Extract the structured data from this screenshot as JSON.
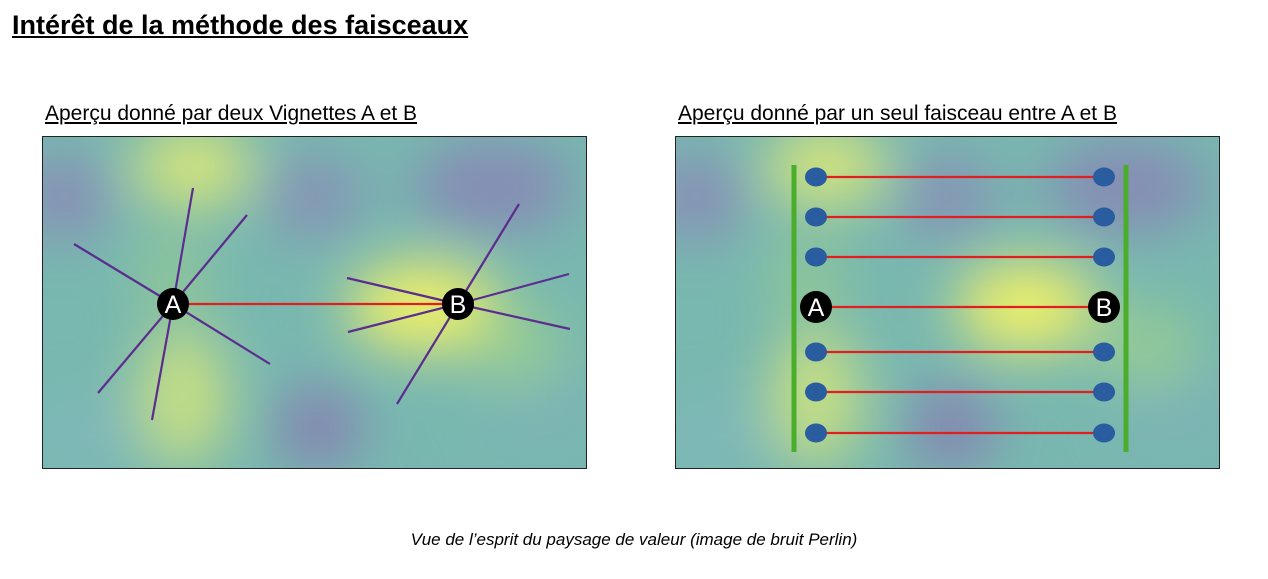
{
  "page": {
    "title": "Intérêt de la méthode des faisceaux",
    "caption": "Vue de l’esprit du paysage de valeur (image de bruit Perlin)"
  },
  "left_panel": {
    "title": "Aperçu donné par deux Vignettes A et B",
    "node_a_label": "A",
    "node_b_label": "B"
  },
  "right_panel": {
    "title": "Aperçu donné par un seul faisceau entre A et B",
    "node_a_label": "A",
    "node_b_label": "B",
    "beam_line_count": 7
  },
  "colors": {
    "vignette_rays": "#5b2d8e",
    "connection_line": "#e02020",
    "node_fill": "#000000",
    "node_text": "#ffffff",
    "beam_border": "#4aae2a",
    "beam_endpoint": "#2a5d9f",
    "landscape_base": "#79b8b0",
    "landscape_high": "#f2f06a",
    "landscape_low": "#8a78b4"
  }
}
